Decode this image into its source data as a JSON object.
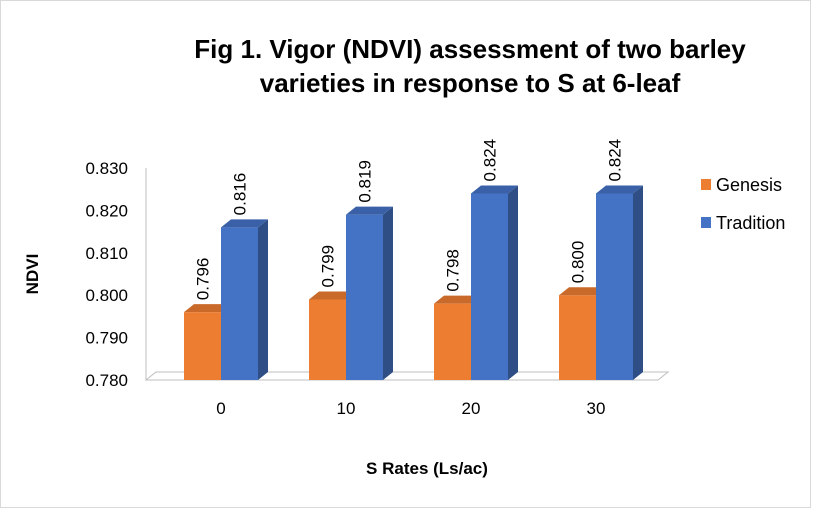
{
  "chart_data": {
    "type": "bar",
    "title_lines": [
      "Fig 1. Vigor (NDVI) assessment of two barley",
      "varieties in response to S at 6-leaf"
    ],
    "xlabel": "S Rates (Ls/ac)",
    "ylabel": "NDVI",
    "categories": [
      "0",
      "10",
      "20",
      "30"
    ],
    "ylim": [
      0.78,
      0.83
    ],
    "yticks": [
      "0.780",
      "0.790",
      "0.800",
      "0.810",
      "0.820",
      "0.830"
    ],
    "grid": false,
    "legend_position": "right",
    "series": [
      {
        "name": "Genesis",
        "color": "#ed7d31",
        "values": [
          0.796,
          0.799,
          0.798,
          0.8
        ],
        "labels": [
          "0.796",
          "0.799",
          "0.798",
          "0.800"
        ]
      },
      {
        "name": "Tradition",
        "color": "#4472c4",
        "values": [
          0.816,
          0.819,
          0.824,
          0.824
        ],
        "labels": [
          "0.816",
          "0.819",
          "0.824",
          "0.824"
        ]
      }
    ]
  }
}
